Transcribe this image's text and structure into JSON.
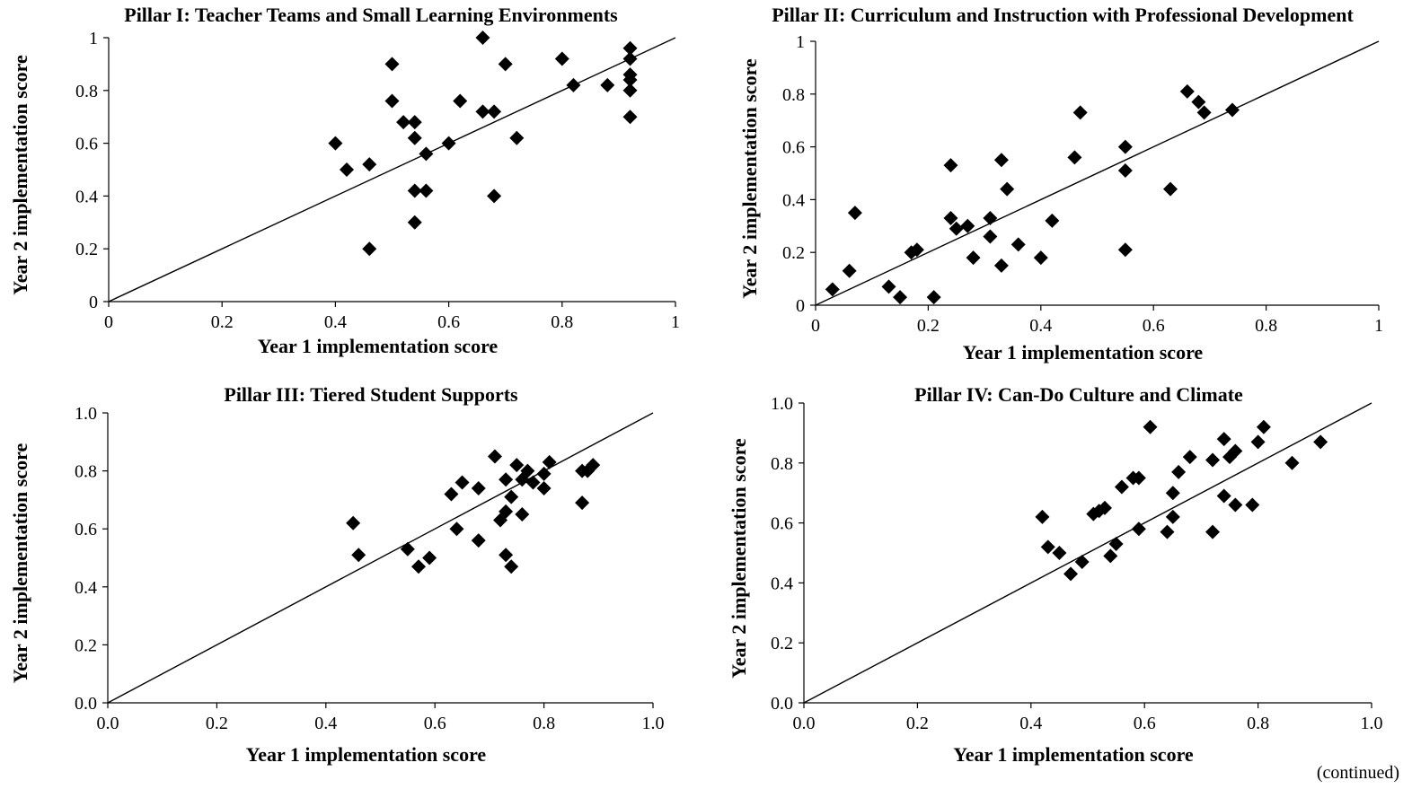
{
  "footnote": "(continued)",
  "chart_data": [
    {
      "type": "scatter",
      "title": "Pillar I: Teacher Teams and Small Learning Environments",
      "xlabel": "Year 1 implementation score",
      "ylabel": "Year 2 implementation score",
      "xlim": [
        0,
        1
      ],
      "ylim": [
        0,
        1
      ],
      "ticks": [
        "0",
        "0.2",
        "0.4",
        "0.6",
        "0.8",
        "1"
      ],
      "reference_line": [
        [
          0,
          0
        ],
        [
          1,
          1
        ]
      ],
      "points": [
        [
          0.4,
          0.6
        ],
        [
          0.42,
          0.5
        ],
        [
          0.46,
          0.52
        ],
        [
          0.46,
          0.2
        ],
        [
          0.5,
          0.9
        ],
        [
          0.5,
          0.76
        ],
        [
          0.52,
          0.68
        ],
        [
          0.54,
          0.68
        ],
        [
          0.54,
          0.62
        ],
        [
          0.54,
          0.42
        ],
        [
          0.54,
          0.3
        ],
        [
          0.56,
          0.56
        ],
        [
          0.56,
          0.42
        ],
        [
          0.6,
          0.6
        ],
        [
          0.62,
          0.76
        ],
        [
          0.66,
          1.0
        ],
        [
          0.66,
          0.72
        ],
        [
          0.68,
          0.72
        ],
        [
          0.68,
          0.4
        ],
        [
          0.7,
          0.9
        ],
        [
          0.72,
          0.62
        ],
        [
          0.8,
          0.92
        ],
        [
          0.82,
          0.82
        ],
        [
          0.88,
          0.82
        ],
        [
          0.92,
          0.96
        ],
        [
          0.92,
          0.92
        ],
        [
          0.92,
          0.86
        ],
        [
          0.92,
          0.84
        ],
        [
          0.92,
          0.8
        ],
        [
          0.92,
          0.7
        ]
      ]
    },
    {
      "type": "scatter",
      "title": "Pillar II: Curriculum and Instruction with Professional Development",
      "xlabel": "Year 1 implementation score",
      "ylabel": "Year 2 implementation score",
      "xlim": [
        0,
        1
      ],
      "ylim": [
        0,
        1
      ],
      "ticks": [
        "0",
        "0.2",
        "0.4",
        "0.6",
        "0.8",
        "1"
      ],
      "reference_line": [
        [
          0,
          0
        ],
        [
          1,
          1
        ]
      ],
      "points": [
        [
          0.03,
          0.06
        ],
        [
          0.06,
          0.13
        ],
        [
          0.07,
          0.35
        ],
        [
          0.13,
          0.07
        ],
        [
          0.15,
          0.03
        ],
        [
          0.17,
          0.2
        ],
        [
          0.18,
          0.21
        ],
        [
          0.21,
          0.03
        ],
        [
          0.24,
          0.53
        ],
        [
          0.24,
          0.33
        ],
        [
          0.25,
          0.29
        ],
        [
          0.27,
          0.3
        ],
        [
          0.28,
          0.18
        ],
        [
          0.31,
          0.26
        ],
        [
          0.31,
          0.33
        ],
        [
          0.33,
          0.55
        ],
        [
          0.33,
          0.15
        ],
        [
          0.34,
          0.44
        ],
        [
          0.36,
          0.23
        ],
        [
          0.4,
          0.18
        ],
        [
          0.42,
          0.32
        ],
        [
          0.46,
          0.56
        ],
        [
          0.47,
          0.73
        ],
        [
          0.55,
          0.6
        ],
        [
          0.55,
          0.51
        ],
        [
          0.55,
          0.21
        ],
        [
          0.63,
          0.44
        ],
        [
          0.66,
          0.81
        ],
        [
          0.68,
          0.77
        ],
        [
          0.69,
          0.73
        ],
        [
          0.74,
          0.74
        ]
      ]
    },
    {
      "type": "scatter",
      "title": "Pillar III: Tiered Student Supports",
      "xlabel": "Year 1 implementation score",
      "ylabel": "Year 2 implementation score",
      "xlim": [
        0,
        1
      ],
      "ylim": [
        0,
        1
      ],
      "ticks": [
        "0.0",
        "0.2",
        "0.4",
        "0.6",
        "0.8",
        "1.0"
      ],
      "reference_line": [
        [
          0,
          0
        ],
        [
          1,
          1
        ]
      ],
      "points": [
        [
          0.45,
          0.62
        ],
        [
          0.46,
          0.51
        ],
        [
          0.55,
          0.53
        ],
        [
          0.57,
          0.47
        ],
        [
          0.59,
          0.5
        ],
        [
          0.63,
          0.72
        ],
        [
          0.64,
          0.6
        ],
        [
          0.65,
          0.76
        ],
        [
          0.68,
          0.74
        ],
        [
          0.68,
          0.56
        ],
        [
          0.71,
          0.85
        ],
        [
          0.72,
          0.63
        ],
        [
          0.73,
          0.66
        ],
        [
          0.73,
          0.51
        ],
        [
          0.73,
          0.77
        ],
        [
          0.74,
          0.71
        ],
        [
          0.74,
          0.47
        ],
        [
          0.75,
          0.82
        ],
        [
          0.76,
          0.65
        ],
        [
          0.76,
          0.77
        ],
        [
          0.77,
          0.8
        ],
        [
          0.78,
          0.76
        ],
        [
          0.8,
          0.74
        ],
        [
          0.8,
          0.79
        ],
        [
          0.81,
          0.83
        ],
        [
          0.87,
          0.69
        ],
        [
          0.87,
          0.8
        ],
        [
          0.88,
          0.8
        ],
        [
          0.89,
          0.82
        ]
      ]
    },
    {
      "type": "scatter",
      "title": "Pillar IV: Can-Do Culture and Climate",
      "xlabel": "Year 1 implementation score",
      "ylabel": "Year 2 implementation score",
      "xlim": [
        0,
        1
      ],
      "ylim": [
        0,
        1
      ],
      "ticks": [
        "0.0",
        "0.2",
        "0.4",
        "0.6",
        "0.8",
        "1.0"
      ],
      "reference_line": [
        [
          0,
          0
        ],
        [
          1,
          1
        ]
      ],
      "points": [
        [
          0.42,
          0.62
        ],
        [
          0.43,
          0.52
        ],
        [
          0.45,
          0.5
        ],
        [
          0.47,
          0.43
        ],
        [
          0.49,
          0.47
        ],
        [
          0.51,
          0.63
        ],
        [
          0.52,
          0.64
        ],
        [
          0.53,
          0.65
        ],
        [
          0.54,
          0.49
        ],
        [
          0.55,
          0.53
        ],
        [
          0.56,
          0.72
        ],
        [
          0.58,
          0.75
        ],
        [
          0.59,
          0.58
        ],
        [
          0.59,
          0.75
        ],
        [
          0.61,
          0.92
        ],
        [
          0.64,
          0.57
        ],
        [
          0.65,
          0.62
        ],
        [
          0.65,
          0.7
        ],
        [
          0.66,
          0.77
        ],
        [
          0.68,
          0.82
        ],
        [
          0.72,
          0.81
        ],
        [
          0.72,
          0.57
        ],
        [
          0.74,
          0.88
        ],
        [
          0.74,
          0.69
        ],
        [
          0.75,
          0.82
        ],
        [
          0.76,
          0.84
        ],
        [
          0.76,
          0.66
        ],
        [
          0.79,
          0.66
        ],
        [
          0.8,
          0.87
        ],
        [
          0.81,
          0.92
        ],
        [
          0.86,
          0.8
        ],
        [
          0.91,
          0.87
        ]
      ]
    }
  ]
}
